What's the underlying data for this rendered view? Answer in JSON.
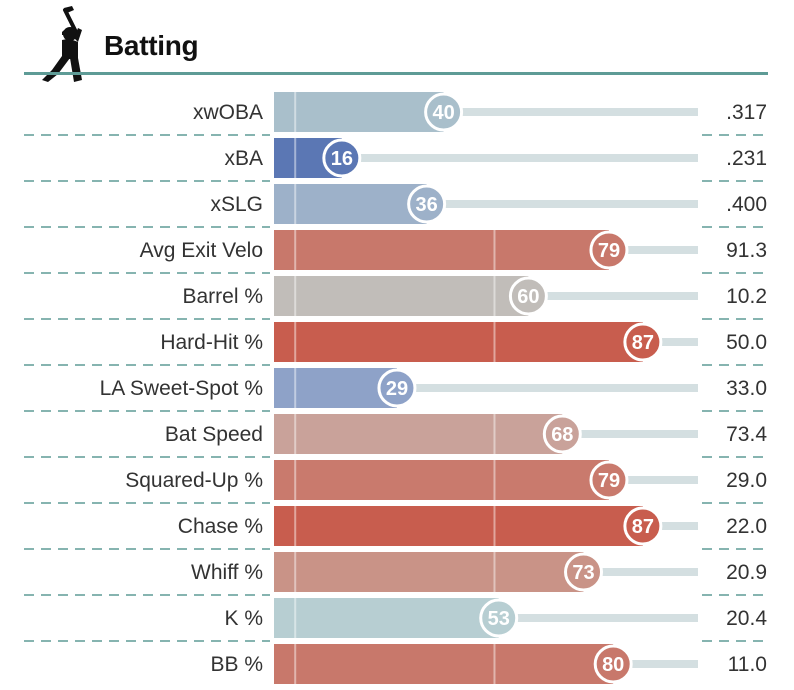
{
  "header": {
    "title": "Batting",
    "icon": "batter-icon"
  },
  "colors": {
    "rule": "#5e9b96",
    "track": "#d4dfe1",
    "gridline": "#ffffff",
    "dash": "#5e9b96"
  },
  "chart_data": {
    "type": "bar",
    "orientation": "horizontal",
    "title": "Batting",
    "xlim": [
      0,
      100
    ],
    "grid": true,
    "categories": [
      "xwOBA",
      "xBA",
      "xSLG",
      "Avg Exit Velo",
      "Barrel %",
      "Hard-Hit %",
      "LA Sweet-Spot %",
      "Bat Speed",
      "Squared-Up %",
      "Chase %",
      "Whiff %",
      "K %",
      "BB %"
    ],
    "series": [
      {
        "values": [
          40,
          16,
          36,
          79,
          60,
          87,
          29,
          68,
          79,
          87,
          73,
          53,
          80
        ]
      }
    ],
    "stat_values": [
      ".317",
      ".231",
      ".400",
      "91.3",
      "10.2",
      "50.0",
      "33.0",
      "73.4",
      "29.0",
      "22.0",
      "20.9",
      "20.4",
      "11.0"
    ],
    "bar_colors": [
      "#a9bfcb",
      "#5b77b4",
      "#9db1c9",
      "#c8786b",
      "#c1bdb9",
      "#c85d4e",
      "#8ea2c8",
      "#c9a29a",
      "#c97a6d",
      "#c85d4e",
      "#c99387",
      "#b7ced2",
      "#c8786b"
    ]
  }
}
